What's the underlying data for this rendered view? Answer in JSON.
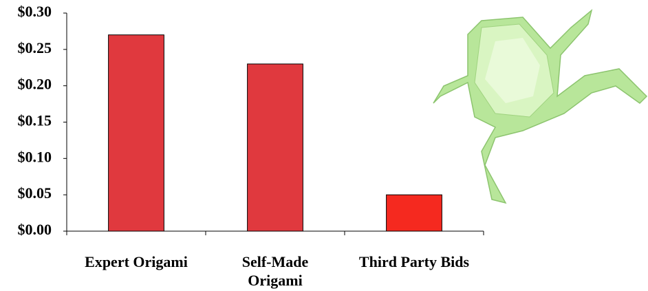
{
  "chart_data": {
    "type": "bar",
    "categories": [
      "Expert Origami",
      "Self-Made\nOrigami",
      "Third Party Bids"
    ],
    "values": [
      0.27,
      0.23,
      0.05
    ],
    "colors": [
      "#e0393e",
      "#e0393e",
      "#f5291f"
    ],
    "ylim": [
      0,
      0.3
    ],
    "yticks": [
      {
        "value": 0,
        "label": "$0.00"
      },
      {
        "value": 0.05,
        "label": "$0.05"
      },
      {
        "value": 0.1,
        "label": "$0.10"
      },
      {
        "value": 0.15,
        "label": "$0.15"
      },
      {
        "value": 0.2,
        "label": "$0.20"
      },
      {
        "value": 0.25,
        "label": "$0.25"
      },
      {
        "value": 0.3,
        "label": "$0.30"
      }
    ]
  }
}
